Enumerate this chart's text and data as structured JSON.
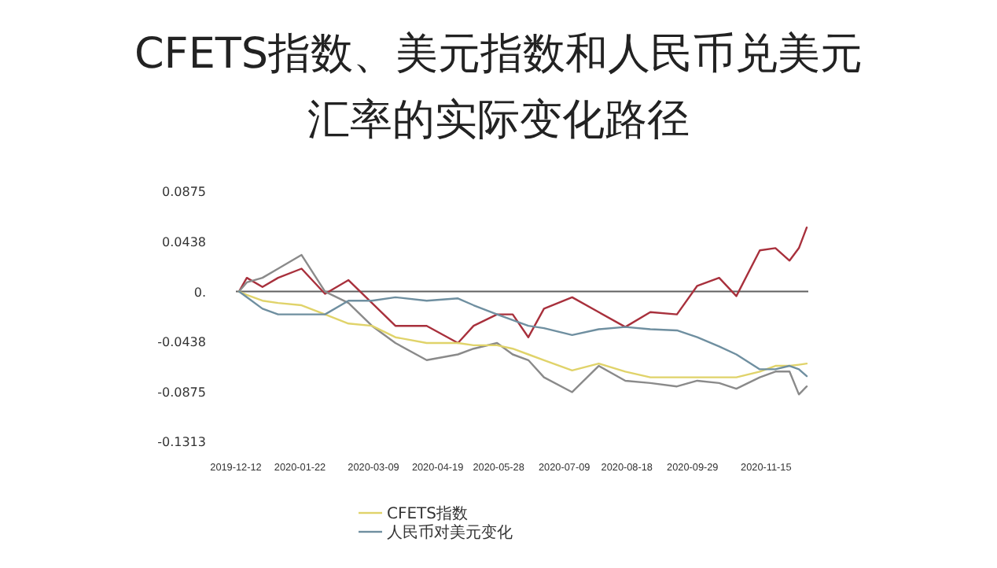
{
  "chart_data": {
    "type": "line",
    "title": "CFETS指数、美元指数和人民币兑美元汇率的实际变化路径",
    "x": [
      "2019-12-14",
      "2019-12-19",
      "2019-12-29",
      "2020-01-08",
      "2020-01-23",
      "2020-02-07",
      "2020-02-22",
      "2020-03-08",
      "2020-03-23",
      "2020-04-12",
      "2020-05-02",
      "2020-05-12",
      "2020-05-27",
      "2020-06-06",
      "2020-06-16",
      "2020-06-26",
      "2020-07-14",
      "2020-07-31",
      "2020-08-17",
      "2020-09-02",
      "2020-09-19",
      "2020-10-02",
      "2020-10-16",
      "2020-10-27",
      "2020-11-11",
      "2020-11-21",
      "2020-11-30",
      "2020-12-06",
      "2020-12-11"
    ],
    "series": [
      {
        "color": "#a8303c",
        "values": [
          0,
          0.012,
          0.004,
          0.012,
          0.02,
          -0.002,
          0.01,
          -0.01,
          -0.03,
          -0.03,
          -0.045,
          -0.03,
          -0.02,
          -0.02,
          -0.04,
          -0.015,
          -0.005,
          -0.018,
          -0.031,
          -0.018,
          -0.02,
          0.005,
          0.012,
          -0.004,
          0.036,
          0.038,
          0.027,
          0.038,
          0.056
        ]
      },
      {
        "color": "#8a8a8a",
        "values": [
          0,
          0.008,
          0.012,
          0.02,
          0.032,
          0.0,
          -0.01,
          -0.03,
          -0.045,
          -0.06,
          -0.055,
          -0.05,
          -0.045,
          -0.055,
          -0.06,
          -0.075,
          -0.088,
          -0.065,
          -0.078,
          -0.08,
          -0.083,
          -0.078,
          -0.08,
          -0.085,
          -0.075,
          -0.07,
          -0.07,
          -0.09,
          -0.083
        ]
      },
      {
        "name": "CFETS指数",
        "color": "#e0d36a",
        "values": [
          0,
          -0.003,
          -0.008,
          -0.01,
          -0.012,
          -0.02,
          -0.028,
          -0.03,
          -0.04,
          -0.045,
          -0.045,
          -0.047,
          -0.047,
          -0.05,
          -0.055,
          -0.06,
          -0.069,
          -0.063,
          -0.07,
          -0.075,
          -0.075,
          -0.075,
          -0.075,
          -0.075,
          -0.07,
          -0.065,
          -0.065,
          -0.064,
          -0.063
        ]
      },
      {
        "name": "人民币对美元变化",
        "color": "#6f8fa0",
        "values": [
          0,
          -0.005,
          -0.015,
          -0.02,
          -0.02,
          -0.02,
          -0.008,
          -0.008,
          -0.005,
          -0.008,
          -0.006,
          -0.012,
          -0.02,
          -0.025,
          -0.03,
          -0.032,
          -0.038,
          -0.033,
          -0.031,
          -0.033,
          -0.034,
          -0.04,
          -0.048,
          -0.055,
          -0.068,
          -0.068,
          -0.065,
          -0.068,
          -0.074
        ]
      }
    ],
    "xlim": [
      "2019-12-12",
      "2020-12-12"
    ],
    "xticks": [
      {
        "value": "2019-12-12",
        "label": "2019-12-12"
      },
      {
        "value": "2020-01-22",
        "label": "2020-01-22"
      },
      {
        "value": "2020-03-09",
        "label": "2020-03-09"
      },
      {
        "value": "2020-04-19",
        "label": "2020-04-19"
      },
      {
        "value": "2020-05-28",
        "label": "2020-05-28"
      },
      {
        "value": "2020-07-09",
        "label": "2020-07-09"
      },
      {
        "value": "2020-08-18",
        "label": "2020-08-18"
      },
      {
        "value": "2020-09-29",
        "label": "2020-09-29"
      },
      {
        "value": "2020-11-15",
        "label": "2020-11-15"
      }
    ],
    "ylim": [
      -0.1313,
      0.0875
    ],
    "yticks": [
      0.0875,
      0.0438,
      {
        "value": 0,
        "label": "0."
      },
      -0.0438,
      -0.0875,
      -0.1313
    ],
    "ref_lines": [
      {
        "axis": "y",
        "value": 0,
        "color": "#606060"
      }
    ],
    "grid": false,
    "legend": "bottom"
  }
}
